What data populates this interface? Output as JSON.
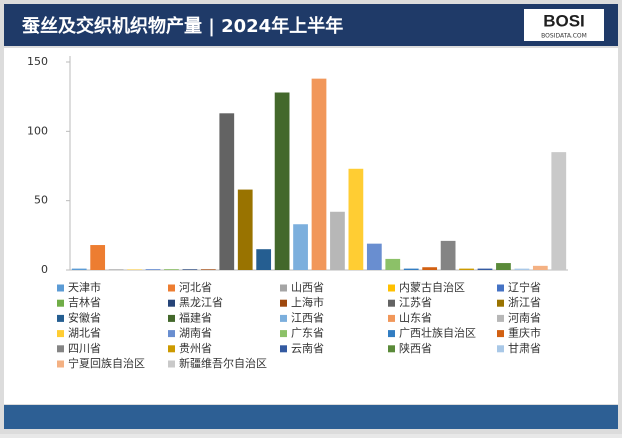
{
  "header": {
    "logo": "BOSI",
    "logo_sub": "BOSIDATA.COM"
  },
  "chart_data": {
    "type": "bar",
    "title": "蚕丝及交织机织物产量 | 2024年上半年",
    "categories": [
      "天津市",
      "河北省",
      "山西省",
      "内蒙古自治区",
      "辽宁省",
      "吉林省",
      "黑龙江省",
      "上海市",
      "江苏省",
      "浙江省",
      "安徽省",
      "福建省",
      "江西省",
      "山东省",
      "河南省",
      "湖北省",
      "湖南省",
      "广东省",
      "广西壮族自治区",
      "重庆市",
      "四川省",
      "贵州省",
      "云南省",
      "陕西省",
      "甘肃省",
      "宁夏回族自治区",
      "新疆维吾尔自治区"
    ],
    "values": [
      1,
      18,
      0.5,
      0.3,
      0.5,
      0.5,
      0.5,
      0.5,
      113,
      58,
      15,
      128,
      33,
      138,
      42,
      73,
      19,
      8,
      1,
      2,
      21,
      1,
      1,
      5,
      1,
      3,
      85
    ],
    "colors": [
      "#5b9bd5",
      "#ed7d31",
      "#a5a5a5",
      "#ffc000",
      "#4472c4",
      "#70ad47",
      "#264478",
      "#9e480e",
      "#636363",
      "#997300",
      "#255e91",
      "#43682b",
      "#7cafdd",
      "#f1975a",
      "#b7b7b7",
      "#ffcd33",
      "#698ed0",
      "#8cc168",
      "#327dc2",
      "#d26012",
      "#848484",
      "#cc9a00",
      "#335aa1",
      "#5a8a39",
      "#a9c8e7",
      "#f4b183",
      "#c9c9c9"
    ],
    "ylim": [
      0,
      150
    ],
    "yticks": [
      0,
      50,
      100,
      150
    ],
    "grid": false
  }
}
